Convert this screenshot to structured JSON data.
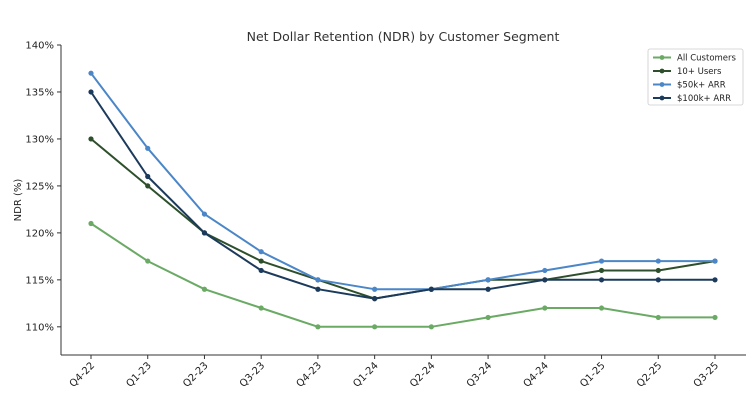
{
  "chart_data": {
    "type": "line",
    "title": "Net Dollar Retention (NDR) by Customer Segment",
    "xlabel": "",
    "ylabel": "NDR (%)",
    "categories": [
      "Q4-22",
      "Q1-23",
      "Q2-23",
      "Q3-23",
      "Q4-23",
      "Q1-24",
      "Q2-24",
      "Q3-24",
      "Q4-24",
      "Q1-25",
      "Q2-25",
      "Q3-25"
    ],
    "ylim": [
      107,
      140
    ],
    "yticks": [
      110,
      115,
      120,
      125,
      130,
      135,
      140
    ],
    "ytick_labels": [
      "110%",
      "115%",
      "120%",
      "125%",
      "130%",
      "135%",
      "140%"
    ],
    "grid": false,
    "legend_position": "top-right",
    "series": [
      {
        "name": "All Customers",
        "color": "#6aaa64",
        "values": [
          121,
          117,
          114,
          112,
          110,
          110,
          110,
          111,
          112,
          112,
          111,
          111
        ]
      },
      {
        "name": "10+ Users",
        "color": "#2d4f2b",
        "values": [
          130,
          125,
          120,
          117,
          115,
          113,
          114,
          115,
          115,
          116,
          116,
          117
        ]
      },
      {
        "name": "$50k+ ARR",
        "color": "#4a86c8",
        "values": [
          137,
          129,
          122,
          118,
          115,
          114,
          114,
          115,
          116,
          117,
          117,
          117
        ]
      },
      {
        "name": "$100k+ ARR",
        "color": "#1c3a5c",
        "values": [
          135,
          126,
          120,
          116,
          114,
          113,
          114,
          114,
          115,
          115,
          115,
          115
        ]
      }
    ]
  }
}
